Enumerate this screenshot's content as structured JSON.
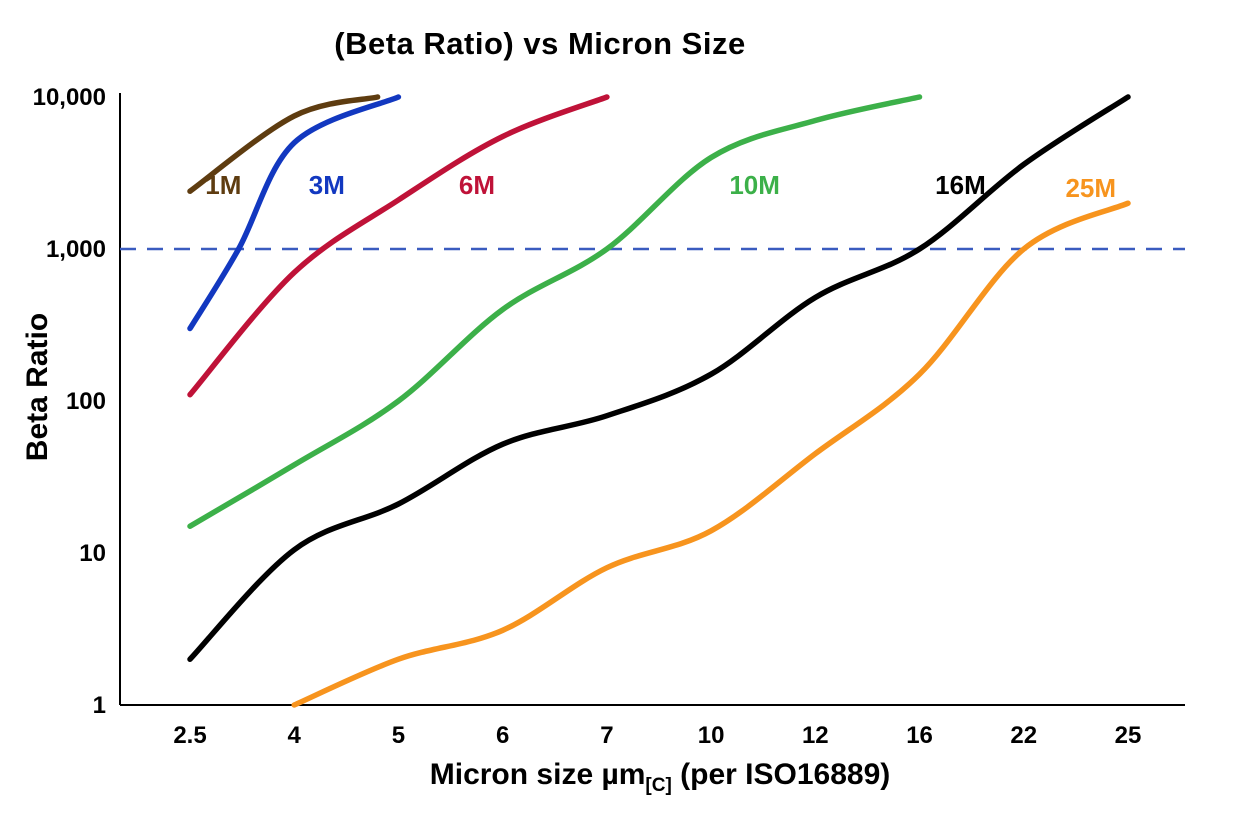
{
  "title": "(Beta Ratio) vs Micron Size",
  "axes": {
    "y_label": "Beta Ratio",
    "x_label_main": "Micron size µm",
    "x_label_sub": "[C]",
    "x_label_rest": " (per ISO16889)"
  },
  "chart_data": {
    "type": "line",
    "title": "(Beta Ratio) vs Micron Size",
    "xlabel": "Micron size µm[C] (per ISO16889)",
    "ylabel": "Beta Ratio",
    "x_scale": "category",
    "y_scale": "log",
    "ylim": [
      1,
      10000
    ],
    "grid": false,
    "categories": [
      2.5,
      4,
      5,
      6,
      7,
      10,
      12,
      16,
      22,
      25
    ],
    "category_labels": [
      "2.5",
      "4",
      "5",
      "6",
      "7",
      "10",
      "12",
      "16",
      "22",
      "25"
    ],
    "y_ticks": [
      {
        "value": 10000,
        "label": "10,000"
      },
      {
        "value": 1000,
        "label": "1,000"
      },
      {
        "value": 100,
        "label": "100"
      },
      {
        "value": 10,
        "label": "10"
      },
      {
        "value": 1,
        "label": "1"
      }
    ],
    "reference_line": {
      "value": 1000,
      "color": "#3a5bbf",
      "style": "dashed"
    },
    "series": [
      {
        "name": "1M",
        "color": "#5e3c10",
        "points": [
          [
            2.5,
            2400
          ],
          [
            4,
            7500
          ],
          [
            4.8,
            10000
          ]
        ]
      },
      {
        "name": "3M",
        "color": "#1238c0",
        "points": [
          [
            2.5,
            300
          ],
          [
            3.2,
            1000
          ],
          [
            4,
            5000
          ],
          [
            5,
            10000
          ]
        ]
      },
      {
        "name": "6M",
        "color": "#bf1238",
        "points": [
          [
            2.5,
            110
          ],
          [
            4,
            700
          ],
          [
            5,
            2100
          ],
          [
            6,
            5500
          ],
          [
            7,
            10000
          ]
        ]
      },
      {
        "name": "10M",
        "color": "#3cb049",
        "points": [
          [
            2.5,
            15
          ],
          [
            4,
            38
          ],
          [
            5,
            100
          ],
          [
            6,
            400
          ],
          [
            7,
            1000
          ],
          [
            10,
            4000
          ],
          [
            12,
            7000
          ],
          [
            16,
            10000
          ]
        ]
      },
      {
        "name": "16M",
        "color": "#000000",
        "points": [
          [
            2.5,
            2
          ],
          [
            4,
            10.5
          ],
          [
            5,
            21
          ],
          [
            6,
            52
          ],
          [
            7,
            80
          ],
          [
            10,
            150
          ],
          [
            12,
            480
          ],
          [
            16,
            1000
          ],
          [
            22,
            3600
          ],
          [
            25,
            10000
          ]
        ]
      },
      {
        "name": "25M",
        "color": "#f7941e",
        "points": [
          [
            4,
            1
          ],
          [
            5,
            2
          ],
          [
            6,
            3.1
          ],
          [
            7,
            8
          ],
          [
            10,
            14
          ],
          [
            12,
            45
          ],
          [
            16,
            150
          ],
          [
            22,
            1000
          ],
          [
            25,
            2000
          ]
        ]
      }
    ],
    "series_labels": [
      {
        "text": "1M",
        "color": "#5e3c10",
        "micron": 2.72,
        "value": 2300
      },
      {
        "text": "3M",
        "color": "#1238c0",
        "micron": 4.14,
        "value": 2300
      },
      {
        "text": "6M",
        "color": "#bf1238",
        "micron": 5.58,
        "value": 2300
      },
      {
        "text": "10M",
        "color": "#3cb049",
        "micron": 10.35,
        "value": 2300
      },
      {
        "text": "16M",
        "color": "#000000",
        "micron": 16.9,
        "value": 2300
      },
      {
        "text": "25M",
        "color": "#f7941e",
        "micron": 23.2,
        "value": 2200
      }
    ]
  }
}
